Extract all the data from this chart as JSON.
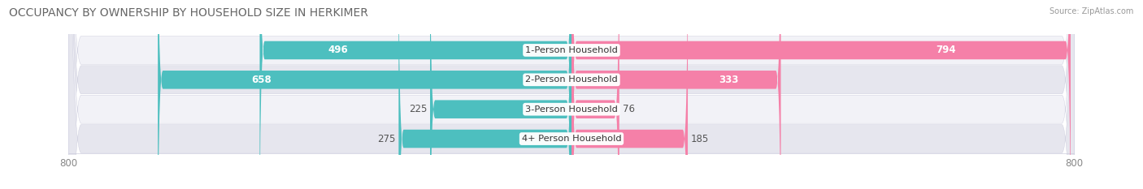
{
  "title": "OCCUPANCY BY OWNERSHIP BY HOUSEHOLD SIZE IN HERKIMER",
  "source": "Source: ZipAtlas.com",
  "categories": [
    "1-Person Household",
    "2-Person Household",
    "3-Person Household",
    "4+ Person Household"
  ],
  "owner_values": [
    496,
    658,
    225,
    275
  ],
  "renter_values": [
    794,
    333,
    76,
    185
  ],
  "owner_color": "#4DBFBF",
  "renter_color": "#F580A8",
  "axis_max": 800,
  "title_fontsize": 10,
  "label_fontsize": 8.5,
  "tick_fontsize": 8.5,
  "bar_height": 0.62,
  "row_bg_light": "#F2F2F7",
  "row_bg_dark": "#E6E6EE",
  "white_label_threshold": 300
}
